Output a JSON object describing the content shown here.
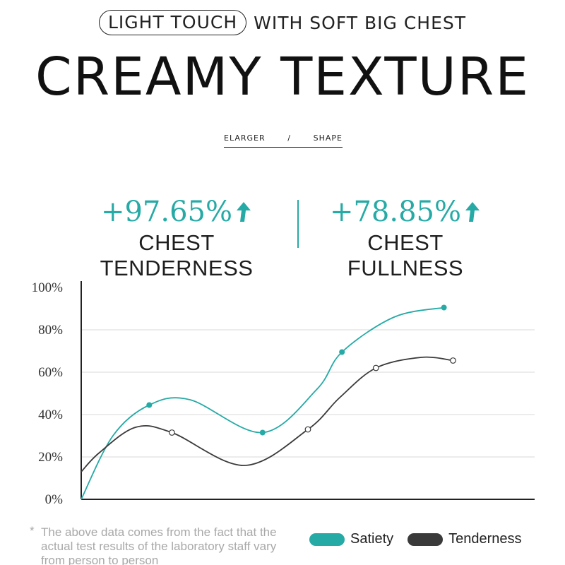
{
  "header": {
    "pill_text": "LIGHT TOUCH",
    "tagline": "WITH SOFT BIG CHEST",
    "title": "CREAMY TEXTURE",
    "subnav": [
      "ELARGER",
      "/",
      "SHAPE"
    ]
  },
  "stats": [
    {
      "value": "+97.65%",
      "label": "CHEST TENDERNESS",
      "icon": "arrow-up-icon"
    },
    {
      "value": "+78.85%",
      "label": "CHEST FULLNESS",
      "icon": "arrow-up-icon"
    }
  ],
  "colors": {
    "accent": "#26aaa6",
    "dark": "#3a3a3a"
  },
  "chart_data": {
    "type": "line",
    "y_ticks": [
      "100%",
      "80%",
      "60%",
      "40%",
      "20%",
      "0%"
    ],
    "ylim": [
      0,
      100
    ],
    "grid": true,
    "legend_position": "bottom-right",
    "series": [
      {
        "name": "Satiety",
        "color": "#26aaa6",
        "marker": "filled",
        "points": [
          [
            1.5,
            44.5
          ],
          [
            4,
            31.5
          ],
          [
            5.75,
            69.5
          ],
          [
            8,
            90.5
          ]
        ]
      },
      {
        "name": "Tenderness",
        "color": "#3a3a3a",
        "marker": "hollow",
        "points": [
          [
            2,
            31.5
          ],
          [
            5,
            33
          ],
          [
            6.5,
            62
          ],
          [
            8.2,
            65.5
          ]
        ]
      }
    ]
  },
  "footnote": {
    "star": "*",
    "text": "The above data comes from the fact that the actual test results of the laboratory staff vary from person to person"
  }
}
